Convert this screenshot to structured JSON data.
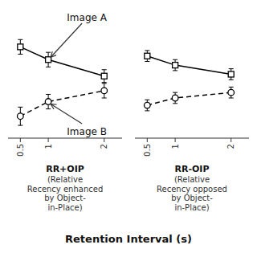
{
  "chart_data": [
    {
      "type": "line",
      "title": "RR+OIP",
      "subtitle": "(Relative\nRecency enhanced\nby Object-\nin-Place)",
      "xlabel": "Retention Interval (s)",
      "x": [
        0.5,
        1,
        2
      ],
      "series": [
        {
          "values": [
            0.72,
            0.65,
            0.56
          ],
          "errors": [
            0.04,
            0.04,
            0.035
          ],
          "color": "#000000",
          "marker": "square",
          "line_style": "solid"
        },
        {
          "values": [
            0.34,
            0.42,
            0.48
          ],
          "errors": [
            0.05,
            0.04,
            0.04
          ],
          "color": "#000000",
          "marker": "circle",
          "line_style": "dashed"
        }
      ],
      "xlim": [
        0.28,
        2.32
      ],
      "xticks": [
        0.5,
        1,
        2
      ],
      "ylim": [
        0.22,
        0.88
      ],
      "grid": false,
      "tick_labels": "x",
      "annotations": [
        {
          "text": "Image A",
          "x": 1,
          "y": 0.65
        },
        {
          "text": "Image B",
          "x": 1,
          "y": 0.42
        }
      ]
    },
    {
      "type": "line",
      "title": "RR-OIP",
      "subtitle": "(Relative\nRecency opposed\nby Object-\nin-Place)",
      "x": [
        0.5,
        1,
        2
      ],
      "series": [
        {
          "values": [
            0.67,
            0.62,
            0.57
          ],
          "errors": [
            0.03,
            0.03,
            0.03
          ],
          "color": "#000000",
          "marker": "square",
          "line_style": "solid"
        },
        {
          "values": [
            0.4,
            0.44,
            0.47
          ],
          "errors": [
            0.03,
            0.03,
            0.03
          ],
          "color": "#000000",
          "marker": "circle",
          "line_style": "dashed"
        }
      ],
      "xlim": [
        0.28,
        2.32
      ],
      "xticks": [
        0.5,
        1,
        2
      ],
      "ylim": [
        0.22,
        0.88
      ],
      "grid": false,
      "tick_labels": "x"
    }
  ]
}
